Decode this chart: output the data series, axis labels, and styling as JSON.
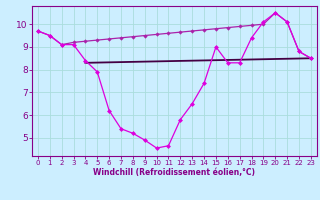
{
  "x": [
    0,
    1,
    2,
    3,
    4,
    5,
    6,
    7,
    8,
    9,
    10,
    11,
    12,
    13,
    14,
    15,
    16,
    17,
    18,
    19,
    20,
    21,
    22,
    23
  ],
  "line1": [
    9.7,
    9.5,
    9.1,
    9.1,
    8.4,
    7.9,
    6.2,
    5.4,
    5.2,
    4.9,
    4.55,
    4.65,
    5.8,
    6.5,
    7.4,
    9.0,
    8.3,
    8.3,
    9.4,
    10.1,
    10.5,
    10.1,
    8.8,
    8.5
  ],
  "line2": [
    9.7,
    9.5,
    9.1,
    9.2,
    9.25,
    9.3,
    9.35,
    9.4,
    9.45,
    9.5,
    9.55,
    9.6,
    9.65,
    9.7,
    9.75,
    9.8,
    9.85,
    9.9,
    9.95,
    10.0,
    10.5,
    10.1,
    8.8,
    8.5
  ],
  "line3_x": [
    4,
    23
  ],
  "line3_y": [
    8.3,
    8.5
  ],
  "bg_color": "#cceeff",
  "grid_color": "#aadddd",
  "line1_color": "#dd00dd",
  "line2_color": "#aa22aa",
  "line3_color": "#440044",
  "xlabel": "Windchill (Refroidissement éolien,°C)",
  "xlim": [
    -0.5,
    23.5
  ],
  "ylim": [
    4.2,
    10.8
  ],
  "yticks": [
    5,
    6,
    7,
    8,
    9,
    10
  ],
  "xticks": [
    0,
    1,
    2,
    3,
    4,
    5,
    6,
    7,
    8,
    9,
    10,
    11,
    12,
    13,
    14,
    15,
    16,
    17,
    18,
    19,
    20,
    21,
    22,
    23
  ],
  "tick_color": "#880088",
  "spine_color": "#880088"
}
